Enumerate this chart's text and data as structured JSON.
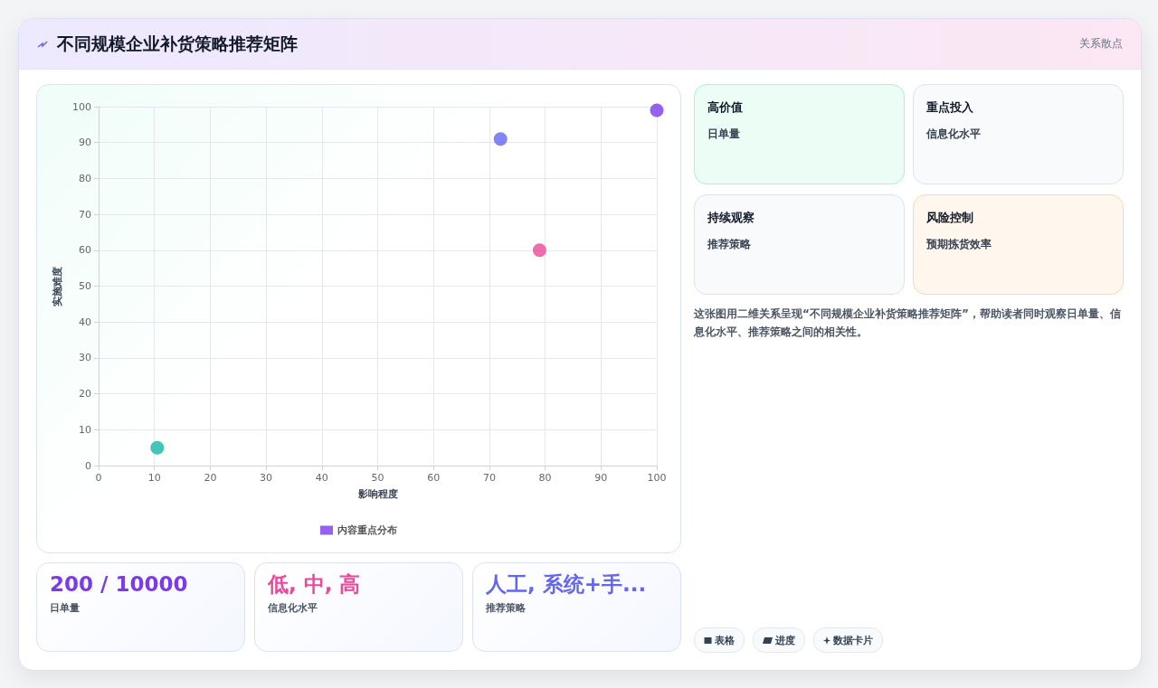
{
  "chart_data": [
    {
      "type": "other",
      "title": "不同规模企业补货策略推荐矩阵",
      "subtitle": "关系散点"
    },
    {
      "type": "scatter",
      "xlabel": "影响程度",
      "ylabel": "实施难度",
      "series": [
        {
          "name": "内容重点分布",
          "color": "#7c3aed",
          "x": [
            10.5,
            72,
            79,
            100
          ],
          "values": [
            5,
            91,
            60,
            99
          ],
          "colors": [
            "#14b8a6",
            "#6366f1",
            "#ec4899",
            "#7c3aed"
          ]
        }
      ],
      "xlim": [
        0,
        100
      ],
      "xticks": [
        0,
        10,
        20,
        30,
        40,
        50,
        60,
        70,
        80,
        90,
        100
      ],
      "ylim": [
        0,
        100
      ],
      "yticks": [
        0,
        10,
        20,
        30,
        40,
        50,
        60,
        70,
        80,
        90,
        100
      ],
      "grid": true,
      "legend": "bottom",
      "marker": "circle"
    },
    {
      "type": "other",
      "annotations": [
        "高价值",
        "日单量",
        "重点投入",
        "信息化水平",
        "持续观察",
        "推荐策略",
        "风险控制",
        "预期拣货效率"
      ]
    },
    {
      "type": "other",
      "annotations": [
        "这张图用二维关系呈现“不同规模企业补货策略推荐矩阵”，帮助读者同时观察日单量、信息化水平、推荐策略之间的相关性。"
      ]
    },
    {
      "type": "other",
      "annotations": [
        "200 / 10000",
        "日单量",
        "低, 中, 高",
        "信息化水平",
        "人工, 系统+手...",
        "推荐策略"
      ]
    },
    {
      "type": "other",
      "annotations": [
        "表格",
        "进度",
        "数据卡片"
      ]
    }
  ]
}
